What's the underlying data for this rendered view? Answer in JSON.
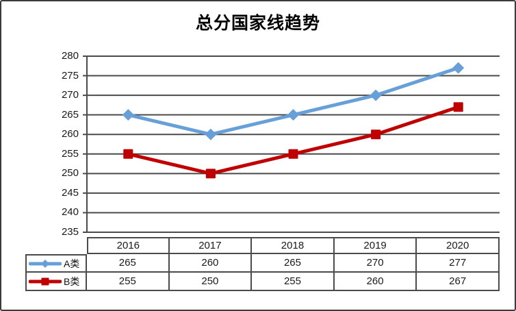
{
  "title": "总分国家线趋势",
  "colors": {
    "series_a": "#67A0D8",
    "series_b": "#C00000",
    "grid": "#4A4A4A",
    "frame_border": "#3B3B3B",
    "text": "#1A1A1A"
  },
  "y_axis": {
    "tick_labels": [
      "280",
      "275",
      "270",
      "265",
      "260",
      "255",
      "250",
      "245",
      "240",
      "235"
    ]
  },
  "chart_data": {
    "type": "line",
    "title": "总分国家线趋势",
    "categories": [
      "2016",
      "2017",
      "2018",
      "2019",
      "2020"
    ],
    "series": [
      {
        "name": "A类",
        "values": [
          265,
          260,
          265,
          270,
          277
        ],
        "color": "#67A0D8",
        "marker": "diamond"
      },
      {
        "name": "B类",
        "values": [
          255,
          250,
          255,
          260,
          267
        ],
        "color": "#C00000",
        "marker": "square"
      }
    ],
    "ylim": [
      235,
      280
    ],
    "ytick_step": 5,
    "grid": true,
    "legend_position": "data-table-left",
    "xlabel": "",
    "ylabel": ""
  }
}
